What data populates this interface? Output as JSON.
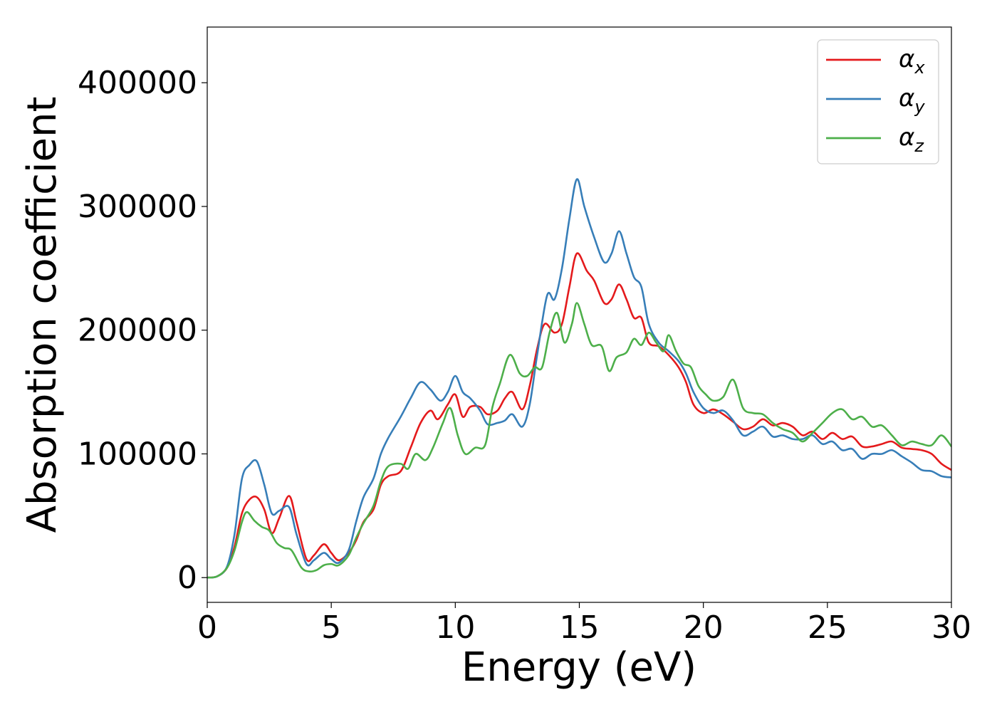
{
  "chart_data": {
    "type": "line",
    "title": "",
    "xlabel": "Energy (eV)",
    "ylabel": "Absorption coefficient",
    "xlim": [
      0,
      30
    ],
    "ylim": [
      -20000,
      445000
    ],
    "xticks": [
      0,
      5,
      10,
      15,
      20,
      25,
      30
    ],
    "yticks": [
      0,
      100000,
      200000,
      300000,
      400000
    ],
    "xtick_labels": [
      "0",
      "5",
      "10",
      "15",
      "20",
      "25",
      "30"
    ],
    "ytick_labels": [
      "0",
      "100000",
      "200000",
      "300000",
      "400000"
    ],
    "grid": false,
    "legend_position": "top-right",
    "series": [
      {
        "name": "αx",
        "symbol": "α",
        "subscript": "x",
        "color": "#e41a1c",
        "points": [
          [
            0,
            0
          ],
          [
            0.4,
            1000
          ],
          [
            0.8,
            8000
          ],
          [
            1.1,
            25000
          ],
          [
            1.4,
            52000
          ],
          [
            1.7,
            63000
          ],
          [
            2.0,
            65000
          ],
          [
            2.3,
            55000
          ],
          [
            2.6,
            36000
          ],
          [
            2.9,
            48000
          ],
          [
            3.3,
            66000
          ],
          [
            3.6,
            45000
          ],
          [
            4.0,
            15000
          ],
          [
            4.3,
            18000
          ],
          [
            4.7,
            27000
          ],
          [
            5.0,
            20000
          ],
          [
            5.3,
            14000
          ],
          [
            5.7,
            20000
          ],
          [
            6.0,
            30000
          ],
          [
            6.3,
            45000
          ],
          [
            6.7,
            55000
          ],
          [
            7.0,
            75000
          ],
          [
            7.3,
            82000
          ],
          [
            7.8,
            86000
          ],
          [
            8.2,
            105000
          ],
          [
            8.6,
            125000
          ],
          [
            9.0,
            135000
          ],
          [
            9.3,
            128000
          ],
          [
            9.7,
            140000
          ],
          [
            10.0,
            148000
          ],
          [
            10.3,
            130000
          ],
          [
            10.6,
            138000
          ],
          [
            11.0,
            138000
          ],
          [
            11.3,
            132000
          ],
          [
            11.7,
            135000
          ],
          [
            12.0,
            145000
          ],
          [
            12.3,
            150000
          ],
          [
            12.7,
            136000
          ],
          [
            13.0,
            155000
          ],
          [
            13.3,
            185000
          ],
          [
            13.6,
            205000
          ],
          [
            14.0,
            198000
          ],
          [
            14.3,
            205000
          ],
          [
            14.6,
            235000
          ],
          [
            14.9,
            262000
          ],
          [
            15.3,
            248000
          ],
          [
            15.6,
            240000
          ],
          [
            16.0,
            222000
          ],
          [
            16.3,
            225000
          ],
          [
            16.6,
            237000
          ],
          [
            16.9,
            225000
          ],
          [
            17.2,
            210000
          ],
          [
            17.5,
            210000
          ],
          [
            17.8,
            190000
          ],
          [
            18.2,
            187000
          ],
          [
            18.6,
            180000
          ],
          [
            19.0,
            170000
          ],
          [
            19.3,
            158000
          ],
          [
            19.6,
            140000
          ],
          [
            20.0,
            133000
          ],
          [
            20.4,
            136000
          ],
          [
            20.8,
            132000
          ],
          [
            21.2,
            126000
          ],
          [
            21.6,
            120000
          ],
          [
            22.0,
            122000
          ],
          [
            22.4,
            128000
          ],
          [
            22.8,
            123000
          ],
          [
            23.2,
            125000
          ],
          [
            23.6,
            122000
          ],
          [
            24.0,
            115000
          ],
          [
            24.4,
            118000
          ],
          [
            24.8,
            112000
          ],
          [
            25.2,
            117000
          ],
          [
            25.6,
            112000
          ],
          [
            26.0,
            114000
          ],
          [
            26.4,
            106000
          ],
          [
            26.8,
            106000
          ],
          [
            27.2,
            108000
          ],
          [
            27.6,
            110000
          ],
          [
            28.0,
            105000
          ],
          [
            28.4,
            104000
          ],
          [
            28.8,
            103000
          ],
          [
            29.2,
            100000
          ],
          [
            29.6,
            92000
          ],
          [
            30.0,
            87000
          ]
        ]
      },
      {
        "name": "αy",
        "symbol": "α",
        "subscript": "y",
        "color": "#377eb8",
        "points": [
          [
            0,
            0
          ],
          [
            0.4,
            1000
          ],
          [
            0.8,
            9000
          ],
          [
            1.1,
            35000
          ],
          [
            1.4,
            80000
          ],
          [
            1.7,
            91000
          ],
          [
            2.0,
            94000
          ],
          [
            2.3,
            75000
          ],
          [
            2.6,
            52000
          ],
          [
            2.9,
            54000
          ],
          [
            3.3,
            57000
          ],
          [
            3.6,
            35000
          ],
          [
            4.0,
            11000
          ],
          [
            4.3,
            14000
          ],
          [
            4.7,
            20000
          ],
          [
            5.0,
            15000
          ],
          [
            5.3,
            12000
          ],
          [
            5.7,
            22000
          ],
          [
            6.0,
            45000
          ],
          [
            6.3,
            65000
          ],
          [
            6.7,
            80000
          ],
          [
            7.0,
            100000
          ],
          [
            7.3,
            113000
          ],
          [
            7.8,
            130000
          ],
          [
            8.2,
            145000
          ],
          [
            8.6,
            158000
          ],
          [
            9.0,
            152000
          ],
          [
            9.4,
            143000
          ],
          [
            9.7,
            150000
          ],
          [
            10.0,
            163000
          ],
          [
            10.3,
            150000
          ],
          [
            10.6,
            145000
          ],
          [
            11.0,
            135000
          ],
          [
            11.3,
            124000
          ],
          [
            11.7,
            125000
          ],
          [
            12.0,
            127000
          ],
          [
            12.3,
            132000
          ],
          [
            12.7,
            122000
          ],
          [
            13.0,
            140000
          ],
          [
            13.3,
            180000
          ],
          [
            13.7,
            228000
          ],
          [
            14.0,
            225000
          ],
          [
            14.3,
            250000
          ],
          [
            14.6,
            290000
          ],
          [
            14.9,
            322000
          ],
          [
            15.2,
            300000
          ],
          [
            15.6,
            275000
          ],
          [
            16.0,
            255000
          ],
          [
            16.3,
            262000
          ],
          [
            16.6,
            280000
          ],
          [
            16.9,
            262000
          ],
          [
            17.2,
            243000
          ],
          [
            17.5,
            235000
          ],
          [
            17.8,
            205000
          ],
          [
            18.2,
            190000
          ],
          [
            18.6,
            183000
          ],
          [
            19.0,
            175000
          ],
          [
            19.3,
            165000
          ],
          [
            19.6,
            150000
          ],
          [
            20.0,
            137000
          ],
          [
            20.4,
            133000
          ],
          [
            20.8,
            135000
          ],
          [
            21.2,
            127000
          ],
          [
            21.6,
            115000
          ],
          [
            22.0,
            118000
          ],
          [
            22.4,
            122000
          ],
          [
            22.8,
            114000
          ],
          [
            23.2,
            115000
          ],
          [
            23.6,
            112000
          ],
          [
            24.0,
            112000
          ],
          [
            24.4,
            115000
          ],
          [
            24.8,
            108000
          ],
          [
            25.2,
            110000
          ],
          [
            25.6,
            103000
          ],
          [
            26.0,
            104000
          ],
          [
            26.4,
            96000
          ],
          [
            26.8,
            100000
          ],
          [
            27.2,
            100000
          ],
          [
            27.6,
            103000
          ],
          [
            28.0,
            98000
          ],
          [
            28.4,
            93000
          ],
          [
            28.8,
            87000
          ],
          [
            29.2,
            86000
          ],
          [
            29.6,
            82000
          ],
          [
            30.0,
            81000
          ]
        ]
      },
      {
        "name": "αz",
        "symbol": "α",
        "subscript": "z",
        "color": "#4daf4a",
        "points": [
          [
            0,
            0
          ],
          [
            0.4,
            1000
          ],
          [
            0.8,
            8000
          ],
          [
            1.1,
            22000
          ],
          [
            1.4,
            45000
          ],
          [
            1.6,
            53000
          ],
          [
            1.9,
            46000
          ],
          [
            2.2,
            41000
          ],
          [
            2.5,
            38000
          ],
          [
            2.8,
            28000
          ],
          [
            3.1,
            24000
          ],
          [
            3.4,
            22000
          ],
          [
            3.8,
            8000
          ],
          [
            4.1,
            5000
          ],
          [
            4.4,
            6000
          ],
          [
            4.7,
            10000
          ],
          [
            5.0,
            11000
          ],
          [
            5.3,
            10000
          ],
          [
            5.7,
            18000
          ],
          [
            6.0,
            32000
          ],
          [
            6.3,
            44000
          ],
          [
            6.7,
            58000
          ],
          [
            7.0,
            78000
          ],
          [
            7.3,
            90000
          ],
          [
            7.8,
            92000
          ],
          [
            8.1,
            88000
          ],
          [
            8.4,
            100000
          ],
          [
            8.8,
            95000
          ],
          [
            9.1,
            105000
          ],
          [
            9.5,
            125000
          ],
          [
            9.8,
            137000
          ],
          [
            10.1,
            115000
          ],
          [
            10.4,
            100000
          ],
          [
            10.8,
            105000
          ],
          [
            11.2,
            107000
          ],
          [
            11.5,
            138000
          ],
          [
            11.8,
            157000
          ],
          [
            12.2,
            180000
          ],
          [
            12.6,
            165000
          ],
          [
            12.9,
            163000
          ],
          [
            13.2,
            170000
          ],
          [
            13.5,
            170000
          ],
          [
            13.8,
            198000
          ],
          [
            14.1,
            214000
          ],
          [
            14.4,
            190000
          ],
          [
            14.7,
            205000
          ],
          [
            14.9,
            222000
          ],
          [
            15.2,
            205000
          ],
          [
            15.5,
            188000
          ],
          [
            15.9,
            187000
          ],
          [
            16.2,
            167000
          ],
          [
            16.5,
            178000
          ],
          [
            16.9,
            182000
          ],
          [
            17.2,
            193000
          ],
          [
            17.5,
            188000
          ],
          [
            17.8,
            198000
          ],
          [
            18.1,
            190000
          ],
          [
            18.4,
            183000
          ],
          [
            18.6,
            196000
          ],
          [
            18.9,
            183000
          ],
          [
            19.2,
            173000
          ],
          [
            19.5,
            170000
          ],
          [
            19.8,
            155000
          ],
          [
            20.1,
            148000
          ],
          [
            20.4,
            143000
          ],
          [
            20.8,
            146000
          ],
          [
            21.2,
            160000
          ],
          [
            21.6,
            137000
          ],
          [
            22.0,
            133000
          ],
          [
            22.4,
            132000
          ],
          [
            22.8,
            125000
          ],
          [
            23.2,
            120000
          ],
          [
            23.6,
            117000
          ],
          [
            24.0,
            110000
          ],
          [
            24.4,
            117000
          ],
          [
            24.8,
            125000
          ],
          [
            25.2,
            133000
          ],
          [
            25.6,
            136000
          ],
          [
            26.0,
            128000
          ],
          [
            26.4,
            130000
          ],
          [
            26.8,
            122000
          ],
          [
            27.2,
            123000
          ],
          [
            27.6,
            115000
          ],
          [
            28.0,
            107000
          ],
          [
            28.4,
            110000
          ],
          [
            28.8,
            108000
          ],
          [
            29.2,
            107000
          ],
          [
            29.6,
            115000
          ],
          [
            30.0,
            106000
          ]
        ]
      }
    ]
  }
}
